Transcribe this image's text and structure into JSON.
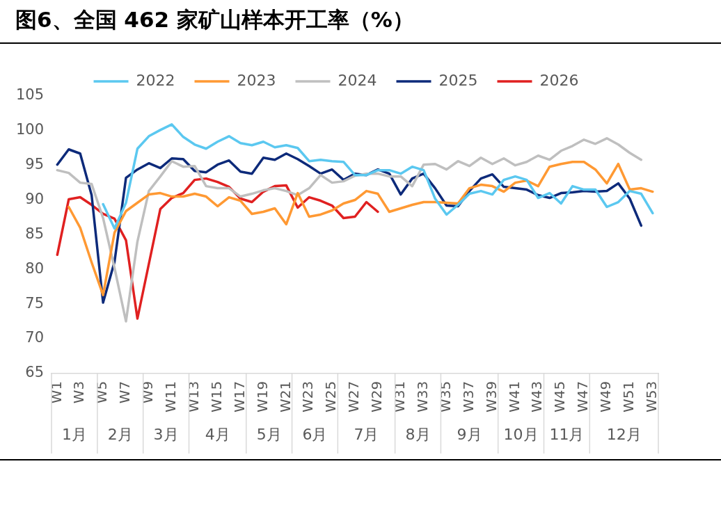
{
  "chart_data": {
    "type": "line",
    "title": "图6、全国 462 家矿山样本开工率（%）",
    "categories": [
      "W1",
      null,
      "W3",
      null,
      "W5",
      null,
      "W7",
      null,
      "W9",
      null,
      "W11",
      null,
      "W13",
      null,
      "W15",
      null,
      "W17",
      null,
      "W19",
      null,
      "W21",
      null,
      "W23",
      null,
      "W25",
      null,
      "W27",
      null,
      "W29",
      null,
      "W31",
      null,
      "W33",
      null,
      "W35",
      null,
      "W37",
      null,
      "W39",
      null,
      "W41",
      null,
      "W43",
      null,
      "W45",
      null,
      "W47",
      null,
      "W49",
      null,
      "W51",
      null,
      "W53"
    ],
    "series": [
      {
        "name": "2022",
        "color": "#5bc8f0",
        "values": [
          null,
          null,
          null,
          null,
          89.4,
          85.9,
          89.6,
          97.4,
          99.2,
          100.1,
          100.9,
          99.1,
          98.0,
          97.4,
          98.4,
          99.2,
          98.2,
          97.9,
          98.4,
          97.6,
          97.9,
          97.5,
          95.6,
          95.8,
          95.6,
          95.5,
          93.6,
          93.6,
          94.3,
          94.3,
          93.8,
          94.8,
          94.3,
          90.2,
          87.9,
          89.3,
          90.9,
          91.3,
          90.8,
          92.9,
          93.4,
          92.9,
          90.3,
          91.0,
          89.5,
          92.0,
          91.5,
          91.5,
          89.0,
          89.7,
          91.3,
          90.9,
          88.1
        ]
      },
      {
        "name": "2023",
        "color": "#ff9933",
        "values": [
          null,
          89.0,
          86.0,
          81.0,
          76.3,
          85.3,
          88.4,
          89.6,
          90.8,
          91.0,
          90.5,
          90.5,
          90.9,
          90.5,
          89.1,
          90.4,
          89.9,
          88.0,
          88.3,
          88.8,
          86.5,
          91.0,
          87.6,
          87.9,
          88.5,
          89.5,
          90.0,
          91.3,
          90.9,
          88.3,
          88.8,
          89.3,
          89.7,
          89.7,
          89.6,
          89.5,
          91.7,
          92.2,
          92.0,
          91.2,
          92.5,
          92.8,
          92.0,
          94.8,
          95.2,
          95.5,
          95.5,
          94.4,
          92.4,
          95.2,
          91.5,
          91.7,
          91.2
        ]
      },
      {
        "name": "2024",
        "color": "#bfbfbf",
        "values": [
          94.3,
          93.9,
          92.5,
          92.3,
          87.4,
          80.2,
          72.5,
          84.0,
          91.3,
          93.4,
          95.6,
          94.8,
          94.9,
          92.0,
          91.7,
          91.7,
          90.5,
          90.9,
          91.4,
          91.7,
          91.3,
          90.7,
          91.7,
          93.6,
          92.5,
          92.7,
          93.5,
          93.8,
          93.8,
          93.4,
          93.4,
          92.0,
          95.1,
          95.2,
          94.4,
          95.6,
          94.9,
          96.1,
          95.2,
          96.0,
          95.0,
          95.5,
          96.4,
          95.8,
          97.1,
          97.8,
          98.7,
          98.1,
          98.9,
          98.0,
          96.8,
          95.8,
          null
        ]
      },
      {
        "name": "2025",
        "color": "#0d2a7a",
        "values": [
          95.1,
          97.3,
          96.7,
          90.7,
          75.2,
          81.1,
          93.2,
          94.4,
          95.3,
          94.6,
          96.0,
          95.9,
          94.2,
          94.0,
          95.1,
          95.7,
          94.1,
          93.8,
          96.1,
          95.8,
          96.7,
          95.9,
          94.9,
          93.8,
          94.4,
          92.9,
          93.8,
          93.6,
          94.4,
          93.8,
          90.8,
          93.1,
          93.8,
          91.7,
          89.2,
          89.1,
          91.3,
          93.1,
          93.7,
          91.9,
          91.7,
          91.5,
          90.7,
          90.3,
          91.0,
          91.1,
          91.3,
          91.2,
          91.3,
          92.4,
          90.2,
          86.3,
          null
        ]
      },
      {
        "name": "2026",
        "color": "#e02020",
        "values": [
          82.1,
          90.1,
          90.4,
          89.3,
          88.0,
          87.3,
          84.2,
          72.9,
          80.8,
          88.7,
          90.3,
          91.0,
          92.9,
          93.1,
          92.6,
          91.9,
          90.2,
          89.7,
          91.2,
          92.0,
          92.1,
          88.9,
          90.4,
          89.9,
          89.2,
          87.4,
          87.6,
          89.7,
          88.3,
          null,
          null,
          null,
          null,
          null,
          null,
          null,
          null,
          null,
          null,
          null,
          null,
          null,
          null,
          null,
          null,
          null,
          null,
          null,
          null,
          null,
          null,
          null,
          null
        ]
      }
    ],
    "ylim": [
      65,
      105
    ],
    "yticks": [
      65,
      70,
      75,
      80,
      85,
      90,
      95,
      100,
      105
    ],
    "legend": "top",
    "marker": "none",
    "line_style": "solid",
    "annotations": [
      "1月",
      "2月",
      "3月",
      "4月",
      "5月",
      "6月",
      "7月",
      "8月",
      "9月",
      "10月",
      "11月",
      "12月"
    ]
  }
}
